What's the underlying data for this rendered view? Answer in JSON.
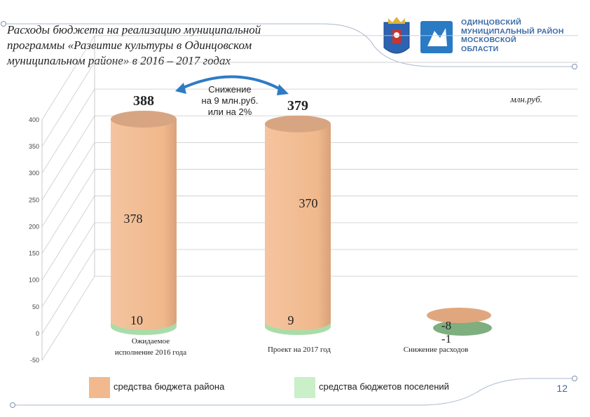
{
  "header": {
    "title_lines": [
      "Расходы бюджета на реализацию муниципальной",
      "программы «Развитие культуры в Одинцовском",
      "муниципальном районе» в 2016 – 2017 годах"
    ],
    "logo_text_lines": [
      "ОДИНЦОВСКИЙ",
      "МУНИЦИПАЛЬНЫЙ РАЙОН",
      "МОСКОВСКОЙ",
      "ОБЛАСТИ"
    ],
    "coat_of_arms_icon": "moscow-oblast-coat-of-arms-icon",
    "district_logo_icon": "odintsovo-district-logo-icon",
    "accent_color": "#3a6aa8"
  },
  "chart_data": {
    "type": "bar",
    "subtype": "stacked-3d-cylinder",
    "unit_label": "млн.руб.",
    "categories": [
      "Ожидаемое исполнение 2016 года",
      "Проект на 2017 год",
      "Снижение расходов"
    ],
    "category_lines": [
      [
        "Ожидаемое",
        "исполнение 2016 года"
      ],
      [
        "Проект на 2017 год"
      ],
      [
        "Снижение расходов"
      ]
    ],
    "series": [
      {
        "name": "средства бюджета района",
        "values": [
          378,
          370,
          -8
        ],
        "color": "#f2b98e"
      },
      {
        "name": "средства бюджетов поселений",
        "values": [
          10,
          9,
          -1
        ],
        "color": "#b7e6b7"
      }
    ],
    "totals": [
      388,
      379
    ],
    "value_labels": {
      "district": [
        "378",
        "370",
        "-8"
      ],
      "settlements": [
        "10",
        "9",
        "-1"
      ],
      "totals": [
        "388",
        "379"
      ]
    },
    "y_ticks": [
      "-50",
      "0",
      "50",
      "100",
      "150",
      "200",
      "250",
      "300",
      "350",
      "400"
    ],
    "ylim": [
      -50,
      400
    ],
    "grid": true,
    "legend_position": "bottom",
    "annotation": [
      "Снижение",
      "на 9 млн.руб.",
      "или на 2%"
    ]
  },
  "footer": {
    "page_number": "12"
  }
}
